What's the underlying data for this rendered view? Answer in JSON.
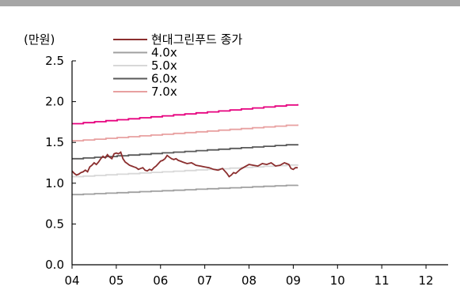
{
  "chart_data": {
    "type": "line",
    "ylabel": "(만원)",
    "ylim": [
      0,
      2.5
    ],
    "yticks": [
      "0.0",
      "0.5",
      "1.0",
      "1.5",
      "2.0",
      "2.5"
    ],
    "xlim": [
      4,
      12.5
    ],
    "xticks": [
      4,
      5,
      6,
      7,
      8,
      9,
      10,
      11,
      12
    ],
    "xtick_labels": [
      "04",
      "05",
      "06",
      "07",
      "08",
      "09",
      "10",
      "11",
      "12"
    ],
    "legend_position": "top",
    "grid": false,
    "series": [
      {
        "name": "현대그린푸드 종가",
        "color": "#8b2e2e",
        "x": [
          4.0,
          4.05,
          4.1,
          4.15,
          4.2,
          4.25,
          4.3,
          4.35,
          4.4,
          4.45,
          4.5,
          4.55,
          4.6,
          4.65,
          4.7,
          4.75,
          4.8,
          4.85,
          4.9,
          4.95,
          5.0,
          5.05,
          5.1,
          5.15,
          5.2,
          5.25,
          5.3,
          5.35,
          5.4,
          5.45,
          5.5,
          5.55,
          5.6,
          5.65,
          5.7,
          5.75,
          5.8,
          5.85,
          5.9,
          5.95,
          6.0,
          6.05,
          6.1,
          6.15,
          6.2,
          6.25,
          6.3,
          6.35,
          6.4,
          6.45,
          6.5,
          6.6,
          6.7,
          6.8,
          6.9,
          7.0,
          7.1,
          7.2,
          7.3,
          7.4,
          7.5,
          7.55,
          7.6,
          7.65,
          7.7,
          7.8,
          7.9,
          8.0,
          8.1,
          8.2,
          8.3,
          8.4,
          8.5,
          8.6,
          8.7,
          8.8,
          8.85,
          8.9,
          8.95,
          9.0,
          9.05,
          9.1
        ],
        "y": [
          1.15,
          1.12,
          1.1,
          1.11,
          1.13,
          1.14,
          1.16,
          1.14,
          1.2,
          1.22,
          1.25,
          1.23,
          1.26,
          1.3,
          1.33,
          1.31,
          1.35,
          1.32,
          1.3,
          1.36,
          1.37,
          1.36,
          1.38,
          1.3,
          1.26,
          1.24,
          1.22,
          1.21,
          1.2,
          1.19,
          1.17,
          1.18,
          1.19,
          1.16,
          1.15,
          1.17,
          1.16,
          1.19,
          1.21,
          1.24,
          1.27,
          1.28,
          1.3,
          1.34,
          1.32,
          1.3,
          1.29,
          1.3,
          1.28,
          1.27,
          1.26,
          1.24,
          1.25,
          1.22,
          1.21,
          1.2,
          1.19,
          1.17,
          1.16,
          1.18,
          1.12,
          1.08,
          1.1,
          1.13,
          1.12,
          1.17,
          1.2,
          1.23,
          1.22,
          1.21,
          1.24,
          1.23,
          1.25,
          1.21,
          1.22,
          1.25,
          1.24,
          1.23,
          1.18,
          1.17,
          1.19,
          1.19
        ]
      },
      {
        "name": "4.0x",
        "color": "#a0a0a0",
        "x": [
          4.0,
          9.1
        ],
        "y": [
          0.86,
          0.98
        ]
      },
      {
        "name": "5.0x",
        "color": "#d8d8d8",
        "x": [
          4.0,
          9.1
        ],
        "y": [
          1.08,
          1.23
        ]
      },
      {
        "name": "6.0x",
        "color": "#595959",
        "x": [
          4.0,
          9.1
        ],
        "y": [
          1.3,
          1.48
        ]
      },
      {
        "name": "7.0x",
        "color": "#e8a0a0",
        "x": [
          4.0,
          9.1
        ],
        "y": [
          1.52,
          1.72
        ]
      },
      {
        "name": "",
        "color": "#e6007e",
        "x": [
          4.0,
          9.1
        ],
        "y": [
          1.73,
          1.97
        ]
      }
    ]
  }
}
